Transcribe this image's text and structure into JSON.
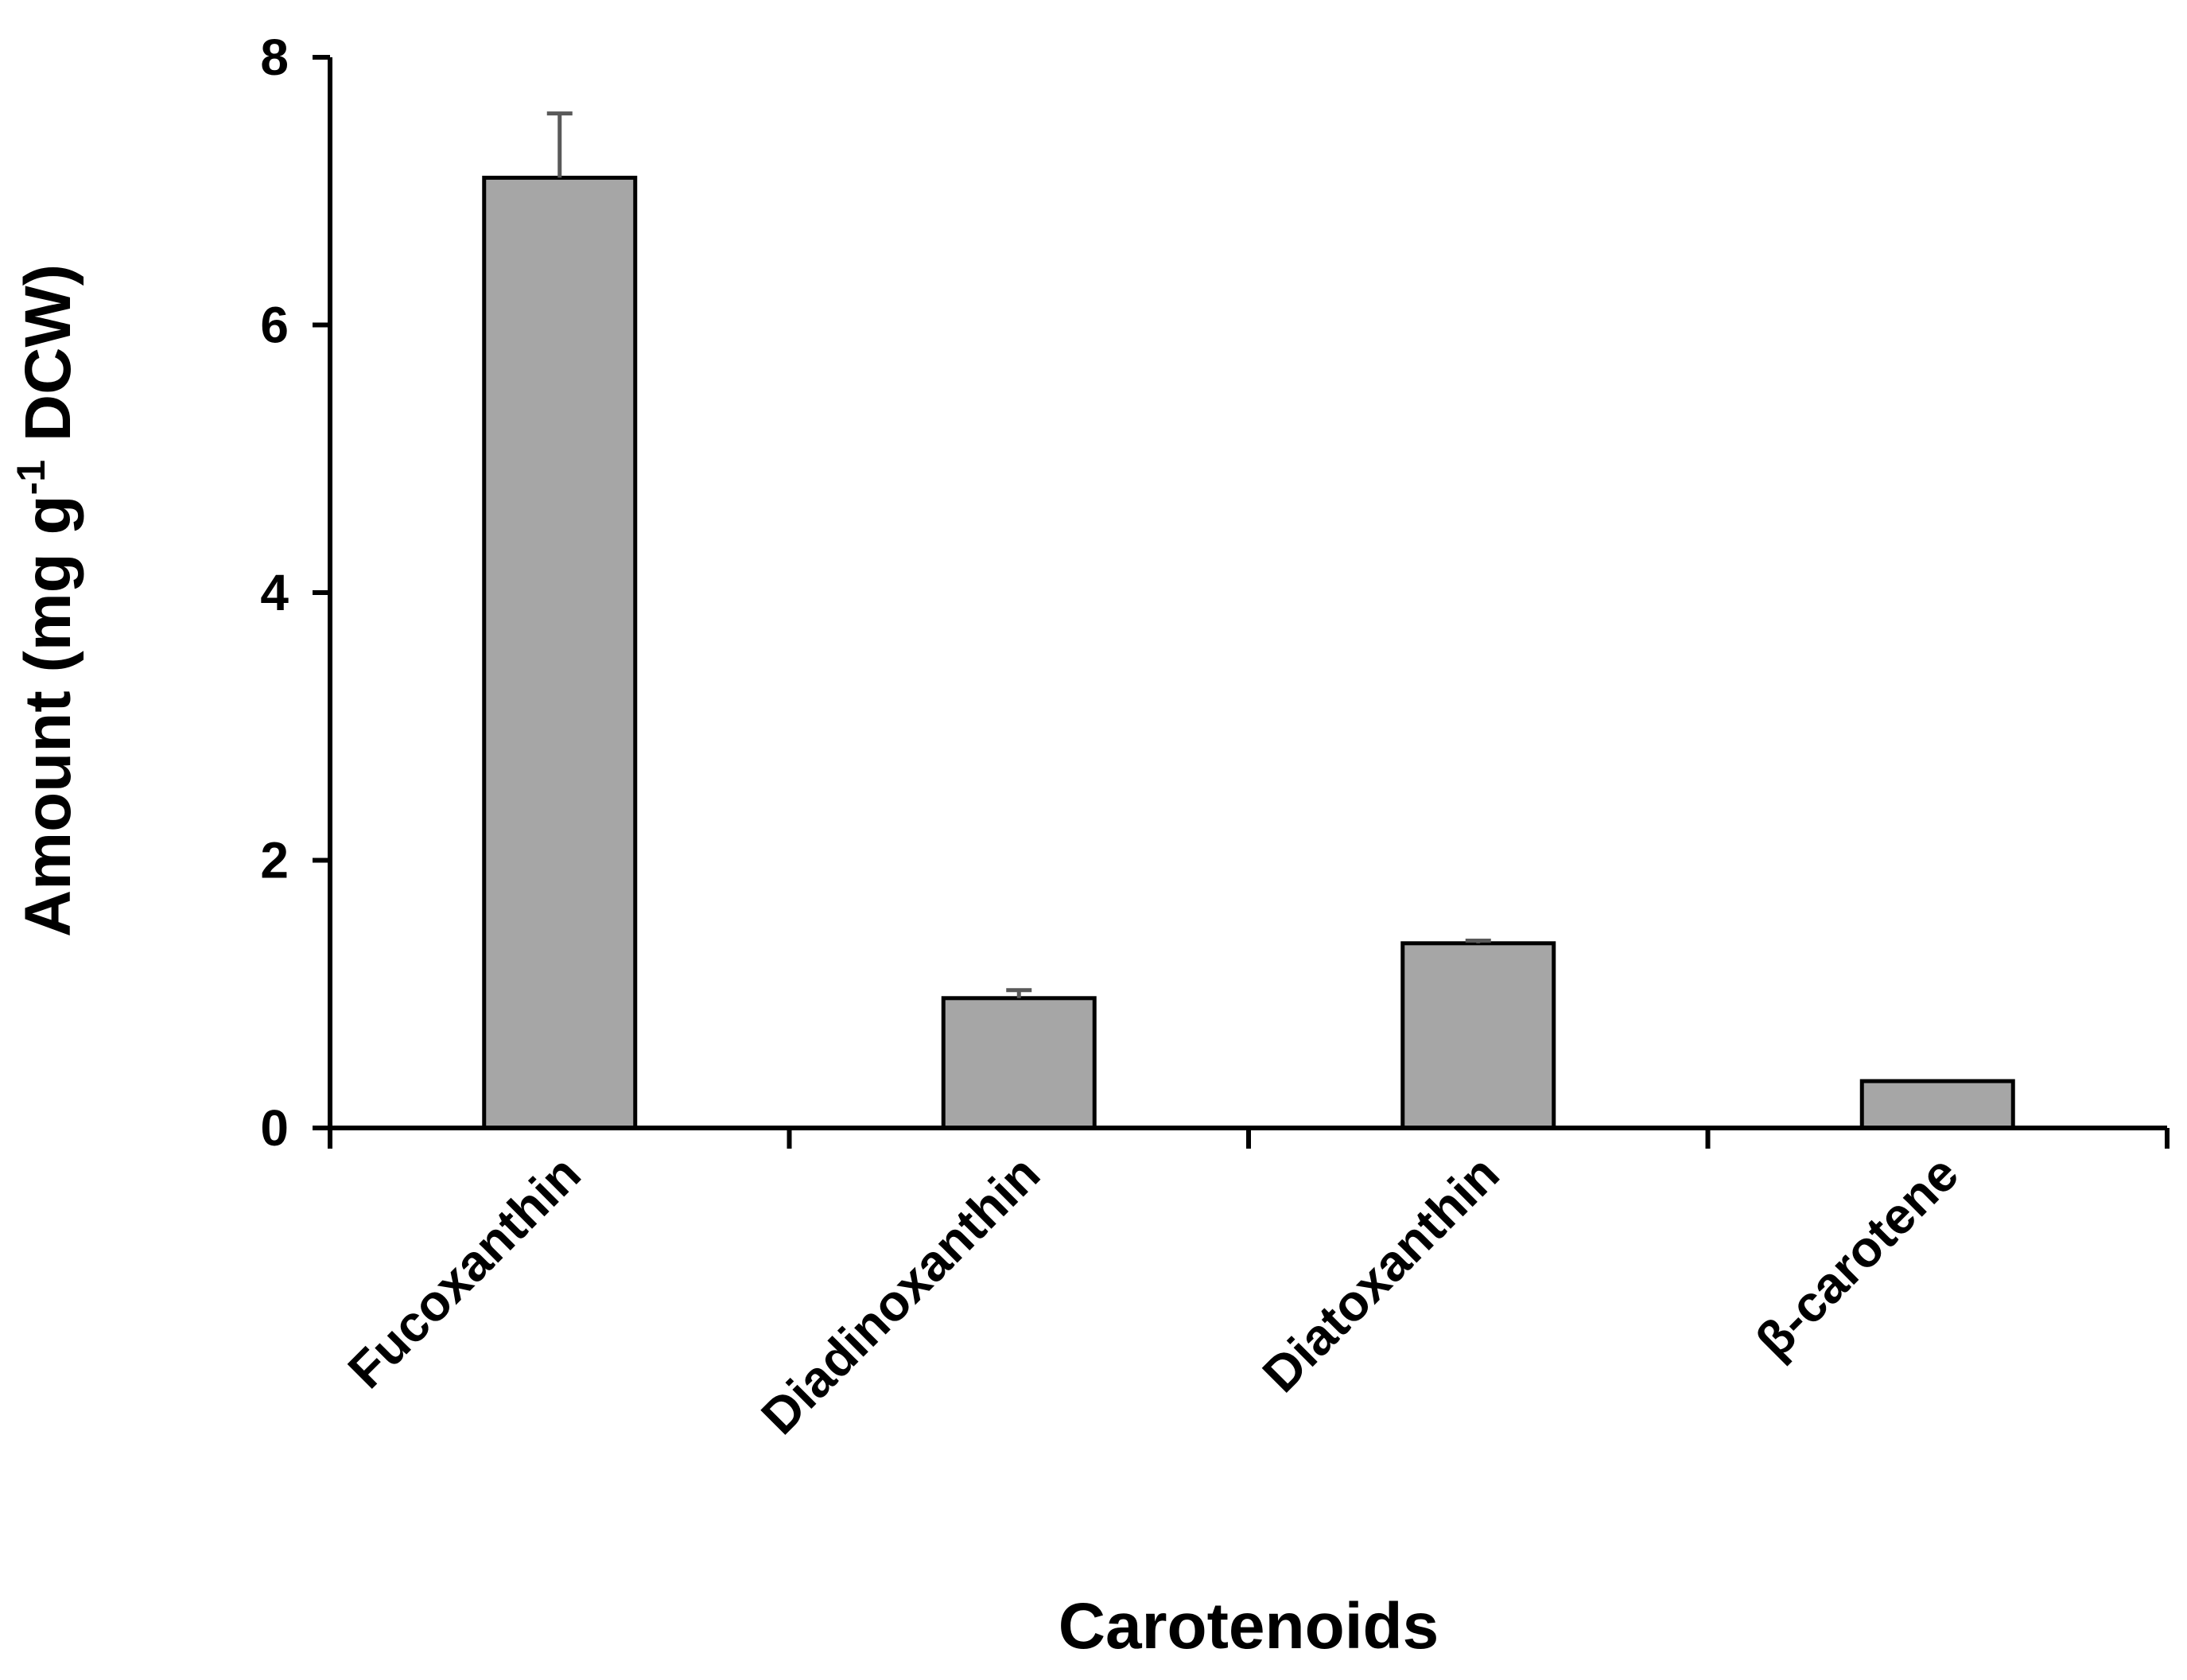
{
  "chart_data": {
    "type": "bar",
    "title": "",
    "categories": [
      "Fucoxanthin",
      "Diadinoxanthin",
      "Diatoxanthin",
      "β-carotene"
    ],
    "values": [
      7.1,
      0.97,
      1.38,
      0.35
    ],
    "errors": [
      0.48,
      0.06,
      0.02,
      0.0
    ],
    "xlabel": "Carotenoids",
    "ylabel": {
      "before": "Amount (mg g",
      "superscript": "-1",
      "after": " DCW)"
    },
    "ylim": [
      0,
      8
    ],
    "yticks": [
      0,
      2,
      4,
      6,
      8
    ],
    "grid": false,
    "legend": "none",
    "colors": {
      "bar_fill": "#a6a6a6",
      "bar_stroke": "#000000",
      "error_bar": "#595959",
      "axis": "#000000"
    }
  }
}
